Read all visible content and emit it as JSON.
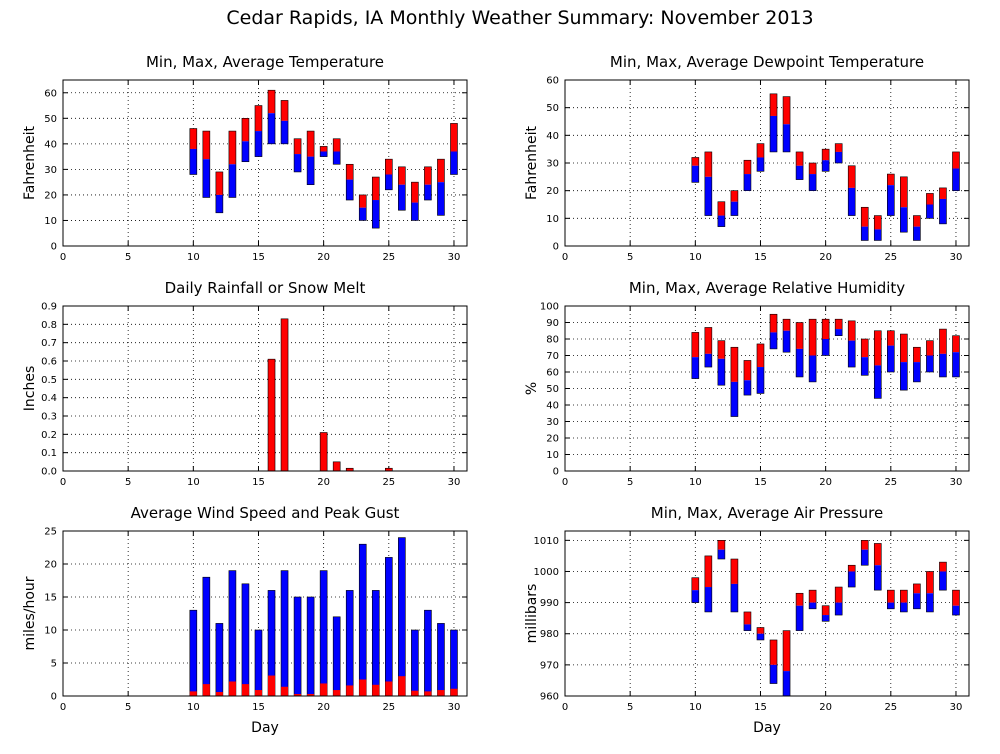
{
  "title": "Cedar Rapids, IA Monthly Weather Summary: November 2013",
  "colors": {
    "red": "#ff0000",
    "blue": "#0000ff"
  },
  "chart_data": [
    {
      "id": "temp",
      "type": "bar",
      "title": "Min, Max, Average Temperature",
      "xlabel": "",
      "ylabel": "Fahrenheit",
      "xlim": [
        0,
        31
      ],
      "ylim": [
        0,
        65
      ],
      "xticks": [
        0,
        5,
        10,
        15,
        20,
        25,
        30
      ],
      "yticks": [
        0,
        10,
        20,
        30,
        40,
        50,
        60
      ],
      "bars": [
        {
          "day": 10,
          "min": 28,
          "avg": 38,
          "max": 46
        },
        {
          "day": 11,
          "min": 19,
          "avg": 34,
          "max": 45
        },
        {
          "day": 12,
          "min": 13,
          "avg": 20,
          "max": 29
        },
        {
          "day": 13,
          "min": 19,
          "avg": 32,
          "max": 45
        },
        {
          "day": 14,
          "min": 33,
          "avg": 41,
          "max": 50
        },
        {
          "day": 15,
          "min": 35,
          "avg": 45,
          "max": 55
        },
        {
          "day": 16,
          "min": 40,
          "avg": 52,
          "max": 61
        },
        {
          "day": 17,
          "min": 40,
          "avg": 49,
          "max": 57
        },
        {
          "day": 18,
          "min": 29,
          "avg": 36,
          "max": 42
        },
        {
          "day": 19,
          "min": 24,
          "avg": 35,
          "max": 45
        },
        {
          "day": 20,
          "min": 35,
          "avg": 37,
          "max": 39
        },
        {
          "day": 21,
          "min": 32,
          "avg": 37,
          "max": 42
        },
        {
          "day": 22,
          "min": 18,
          "avg": 26,
          "max": 32
        },
        {
          "day": 23,
          "min": 10,
          "avg": 15,
          "max": 20
        },
        {
          "day": 24,
          "min": 7,
          "avg": 18,
          "max": 27
        },
        {
          "day": 25,
          "min": 22,
          "avg": 28,
          "max": 34
        },
        {
          "day": 26,
          "min": 14,
          "avg": 24,
          "max": 31
        },
        {
          "day": 27,
          "min": 10,
          "avg": 17,
          "max": 25
        },
        {
          "day": 28,
          "min": 18,
          "avg": 24,
          "max": 31
        },
        {
          "day": 29,
          "min": 12,
          "avg": 25,
          "max": 34
        },
        {
          "day": 30,
          "min": 28,
          "avg": 37,
          "max": 48
        }
      ]
    },
    {
      "id": "dewpoint",
      "type": "bar",
      "title": "Min, Max, Average Dewpoint Temperature",
      "xlabel": "",
      "ylabel": "Fahrenheit",
      "xlim": [
        0,
        31
      ],
      "ylim": [
        0,
        60
      ],
      "xticks": [
        0,
        5,
        10,
        15,
        20,
        25,
        30
      ],
      "yticks": [
        0,
        10,
        20,
        30,
        40,
        50,
        60
      ],
      "bars": [
        {
          "day": 10,
          "min": 23,
          "avg": 29,
          "max": 32
        },
        {
          "day": 11,
          "min": 11,
          "avg": 25,
          "max": 34
        },
        {
          "day": 12,
          "min": 7,
          "avg": 11,
          "max": 16
        },
        {
          "day": 13,
          "min": 11,
          "avg": 16,
          "max": 20
        },
        {
          "day": 14,
          "min": 20,
          "avg": 26,
          "max": 31
        },
        {
          "day": 15,
          "min": 27,
          "avg": 32,
          "max": 37
        },
        {
          "day": 16,
          "min": 34,
          "avg": 47,
          "max": 55
        },
        {
          "day": 17,
          "min": 34,
          "avg": 44,
          "max": 54
        },
        {
          "day": 18,
          "min": 24,
          "avg": 29,
          "max": 34
        },
        {
          "day": 19,
          "min": 20,
          "avg": 26,
          "max": 30
        },
        {
          "day": 20,
          "min": 27,
          "avg": 31,
          "max": 35
        },
        {
          "day": 21,
          "min": 30,
          "avg": 34,
          "max": 37
        },
        {
          "day": 22,
          "min": 11,
          "avg": 21,
          "max": 29
        },
        {
          "day": 23,
          "min": 2,
          "avg": 7,
          "max": 14
        },
        {
          "day": 24,
          "min": 2,
          "avg": 6,
          "max": 11
        },
        {
          "day": 25,
          "min": 11,
          "avg": 22,
          "max": 26
        },
        {
          "day": 26,
          "min": 5,
          "avg": 14,
          "max": 25
        },
        {
          "day": 27,
          "min": 2,
          "avg": 7,
          "max": 11
        },
        {
          "day": 28,
          "min": 10,
          "avg": 15,
          "max": 19
        },
        {
          "day": 29,
          "min": 8,
          "avg": 17,
          "max": 21
        },
        {
          "day": 30,
          "min": 20,
          "avg": 28,
          "max": 34
        }
      ]
    },
    {
      "id": "rain",
      "type": "bar",
      "title": "Daily Rainfall or Snow Melt",
      "xlabel": "",
      "ylabel": "Inches",
      "xlim": [
        0,
        31
      ],
      "ylim": [
        0,
        0.9
      ],
      "xticks": [
        0,
        5,
        10,
        15,
        20,
        25,
        30
      ],
      "yticks": [
        "0.0",
        "0.1",
        "0.2",
        "0.3",
        "0.4",
        "0.5",
        "0.6",
        "0.7",
        "0.8",
        "0.9"
      ],
      "bars": [
        {
          "day": 16,
          "value": 0.61
        },
        {
          "day": 17,
          "value": 0.83
        },
        {
          "day": 20,
          "value": 0.21
        },
        {
          "day": 21,
          "value": 0.05
        },
        {
          "day": 22,
          "value": 0.015
        },
        {
          "day": 25,
          "value": 0.015
        }
      ]
    },
    {
      "id": "humidity",
      "type": "bar",
      "title": "Min, Max, Average Relative Humidity",
      "xlabel": "",
      "ylabel": "%",
      "xlim": [
        0,
        31
      ],
      "ylim": [
        0,
        100
      ],
      "xticks": [
        0,
        5,
        10,
        15,
        20,
        25,
        30
      ],
      "yticks": [
        0,
        10,
        20,
        30,
        40,
        50,
        60,
        70,
        80,
        90,
        100
      ],
      "bars": [
        {
          "day": 10,
          "min": 56,
          "avg": 69,
          "max": 84
        },
        {
          "day": 11,
          "min": 63,
          "avg": 71,
          "max": 87
        },
        {
          "day": 12,
          "min": 52,
          "avg": 68,
          "max": 79
        },
        {
          "day": 13,
          "min": 33,
          "avg": 54,
          "max": 75
        },
        {
          "day": 14,
          "min": 46,
          "avg": 55,
          "max": 67
        },
        {
          "day": 15,
          "min": 47,
          "avg": 63,
          "max": 77
        },
        {
          "day": 16,
          "min": 74,
          "avg": 84,
          "max": 95
        },
        {
          "day": 17,
          "min": 72,
          "avg": 85,
          "max": 92
        },
        {
          "day": 18,
          "min": 57,
          "avg": 74,
          "max": 90
        },
        {
          "day": 19,
          "min": 54,
          "avg": 70,
          "max": 92
        },
        {
          "day": 20,
          "min": 70,
          "avg": 80,
          "max": 92
        },
        {
          "day": 21,
          "min": 82,
          "avg": 86,
          "max": 92
        },
        {
          "day": 22,
          "min": 63,
          "avg": 79,
          "max": 91
        },
        {
          "day": 23,
          "min": 58,
          "avg": 69,
          "max": 80
        },
        {
          "day": 24,
          "min": 44,
          "avg": 64,
          "max": 85
        },
        {
          "day": 25,
          "min": 60,
          "avg": 76,
          "max": 85
        },
        {
          "day": 26,
          "min": 49,
          "avg": 66,
          "max": 83
        },
        {
          "day": 27,
          "min": 54,
          "avg": 66,
          "max": 75
        },
        {
          "day": 28,
          "min": 60,
          "avg": 70,
          "max": 79
        },
        {
          "day": 29,
          "min": 57,
          "avg": 71,
          "max": 86
        },
        {
          "day": 30,
          "min": 57,
          "avg": 72,
          "max": 82
        }
      ]
    },
    {
      "id": "wind",
      "type": "bar",
      "title": "Average Wind Speed and Peak Gust",
      "xlabel": "Day",
      "ylabel": "miles/hour",
      "xlim": [
        0,
        31
      ],
      "ylim": [
        0,
        25
      ],
      "xticks": [
        0,
        5,
        10,
        15,
        20,
        25,
        30
      ],
      "yticks": [
        0,
        5,
        10,
        15,
        20,
        25
      ],
      "bars": [
        {
          "day": 10,
          "avg": 0.7,
          "gust": 13
        },
        {
          "day": 11,
          "avg": 1.8,
          "gust": 18
        },
        {
          "day": 12,
          "avg": 0.6,
          "gust": 11
        },
        {
          "day": 13,
          "avg": 2.2,
          "gust": 19
        },
        {
          "day": 14,
          "avg": 1.8,
          "gust": 17
        },
        {
          "day": 15,
          "avg": 0.9,
          "gust": 10
        },
        {
          "day": 16,
          "avg": 3.1,
          "gust": 16
        },
        {
          "day": 17,
          "avg": 1.4,
          "gust": 19
        },
        {
          "day": 18,
          "avg": 0.3,
          "gust": 15
        },
        {
          "day": 19,
          "avg": 0.3,
          "gust": 15
        },
        {
          "day": 20,
          "avg": 1.9,
          "gust": 19
        },
        {
          "day": 21,
          "avg": 0.9,
          "gust": 12
        },
        {
          "day": 22,
          "avg": 1.6,
          "gust": 16
        },
        {
          "day": 23,
          "avg": 2.5,
          "gust": 23
        },
        {
          "day": 24,
          "avg": 1.7,
          "gust": 16
        },
        {
          "day": 25,
          "avg": 2.2,
          "gust": 21
        },
        {
          "day": 26,
          "avg": 3.0,
          "gust": 24
        },
        {
          "day": 27,
          "avg": 0.8,
          "gust": 10
        },
        {
          "day": 28,
          "avg": 0.7,
          "gust": 13
        },
        {
          "day": 29,
          "avg": 0.9,
          "gust": 11
        },
        {
          "day": 30,
          "avg": 1.1,
          "gust": 10
        }
      ]
    },
    {
      "id": "pressure",
      "type": "bar",
      "title": "Min, Max, Average Air Pressure",
      "xlabel": "Day",
      "ylabel": "millibars",
      "xlim": [
        0,
        31
      ],
      "ylim": [
        960,
        1013
      ],
      "xticks": [
        0,
        5,
        10,
        15,
        20,
        25,
        30
      ],
      "yticks": [
        960,
        970,
        980,
        990,
        1000,
        1010
      ],
      "bars": [
        {
          "day": 10,
          "min": 990,
          "avg": 994,
          "max": 998
        },
        {
          "day": 11,
          "min": 987,
          "avg": 995,
          "max": 1005
        },
        {
          "day": 12,
          "min": 1004,
          "avg": 1007,
          "max": 1010
        },
        {
          "day": 13,
          "min": 987,
          "avg": 996,
          "max": 1004
        },
        {
          "day": 14,
          "min": 981,
          "avg": 983,
          "max": 987
        },
        {
          "day": 15,
          "min": 978,
          "avg": 980,
          "max": 982
        },
        {
          "day": 16,
          "min": 964,
          "avg": 970,
          "max": 978
        },
        {
          "day": 17,
          "min": 960,
          "avg": 968,
          "max": 981
        },
        {
          "day": 18,
          "min": 981,
          "avg": 989,
          "max": 993
        },
        {
          "day": 19,
          "min": 988,
          "avg": 990,
          "max": 994
        },
        {
          "day": 20,
          "min": 984,
          "avg": 986,
          "max": 989
        },
        {
          "day": 21,
          "min": 986,
          "avg": 990,
          "max": 995
        },
        {
          "day": 22,
          "min": 995,
          "avg": 1000,
          "max": 1002
        },
        {
          "day": 23,
          "min": 1002,
          "avg": 1007,
          "max": 1010
        },
        {
          "day": 24,
          "min": 994,
          "avg": 1002,
          "max": 1009
        },
        {
          "day": 25,
          "min": 988,
          "avg": 990,
          "max": 994
        },
        {
          "day": 26,
          "min": 987,
          "avg": 990,
          "max": 994
        },
        {
          "day": 27,
          "min": 988,
          "avg": 993,
          "max": 996
        },
        {
          "day": 28,
          "min": 987,
          "avg": 993,
          "max": 1000
        },
        {
          "day": 29,
          "min": 994,
          "avg": 1000,
          "max": 1003
        },
        {
          "day": 30,
          "min": 986,
          "avg": 989,
          "max": 994
        }
      ]
    }
  ]
}
